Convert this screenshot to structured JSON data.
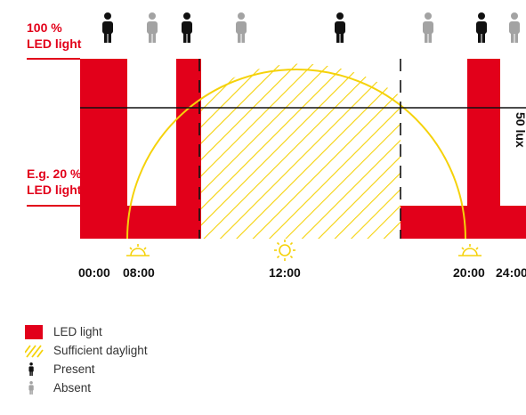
{
  "labels": {
    "max_light_line1": "100 %",
    "max_light_line2": "LED light",
    "reduced_light_line1": "E.g. 20 %",
    "reduced_light_line2": "LED light",
    "threshold": "50 lux"
  },
  "times": [
    "00:00",
    "08:00",
    "12:00",
    "20:00",
    "24:00"
  ],
  "legend": [
    {
      "label": "LED light",
      "icon": "red-square-icon"
    },
    {
      "label": "Sufficient daylight",
      "icon": "yellow-hatch-icon"
    },
    {
      "label": "Present",
      "icon": "person-dark-icon"
    },
    {
      "label": "Absent",
      "icon": "person-grey-icon"
    }
  ],
  "presence": [
    "present",
    "absent",
    "present",
    "absent",
    "present",
    "absent",
    "present",
    "absent"
  ],
  "colors": {
    "led": "#e2001a",
    "daylight": "#f5d20a",
    "present": "#111111",
    "absent": "#a3a3a3",
    "axis": "#111111"
  }
}
